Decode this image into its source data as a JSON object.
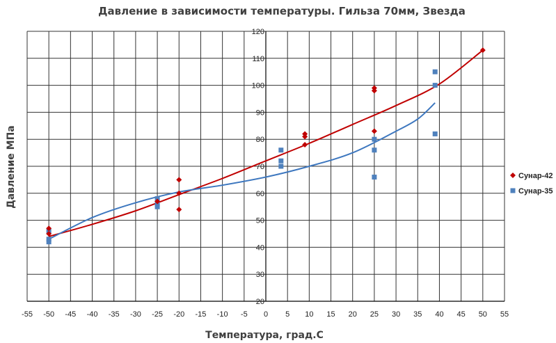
{
  "chart_data": {
    "type": "scatter",
    "title": "Давление в зависимости температуры.  Гильза 70мм, Звезда",
    "xlabel": "Температура, град.С",
    "ylabel": "Давление МПа",
    "xlim": [
      -55,
      55
    ],
    "ylim": [
      20,
      120
    ],
    "x_ticks": [
      -55,
      -50,
      -45,
      -40,
      -35,
      -30,
      -25,
      -20,
      -15,
      -10,
      -5,
      0,
      5,
      10,
      15,
      20,
      25,
      30,
      35,
      40,
      45,
      50,
      55
    ],
    "y_ticks": [
      20,
      30,
      40,
      50,
      60,
      70,
      80,
      90,
      100,
      110,
      120
    ],
    "grid": true,
    "legend_position": "right",
    "series": [
      {
        "name": "Сунар-42",
        "marker": "diamond",
        "color": "#c00000",
        "points": [
          [
            -50,
            47
          ],
          [
            -50,
            45
          ],
          [
            -25,
            57
          ],
          [
            -20,
            65
          ],
          [
            -20,
            60
          ],
          [
            -20,
            54
          ],
          [
            9,
            82
          ],
          [
            9,
            81
          ],
          [
            9,
            78
          ],
          [
            25,
            99
          ],
          [
            25,
            98
          ],
          [
            25,
            83
          ],
          [
            50,
            113
          ]
        ],
        "trendline": {
          "kind": "polynomial",
          "x": [
            -50,
            -40,
            -30,
            -20,
            -10,
            0,
            10,
            20,
            30,
            40,
            50
          ],
          "y": [
            44,
            48.5,
            53.5,
            59.5,
            65.5,
            72,
            78.5,
            85.5,
            92.5,
            100.5,
            113
          ]
        }
      },
      {
        "name": "Сунар-35",
        "marker": "square",
        "color": "#4f81bd",
        "points": [
          [
            -50,
            46
          ],
          [
            -50,
            43
          ],
          [
            -50,
            42
          ],
          [
            -25,
            58
          ],
          [
            -25,
            56
          ],
          [
            -25,
            55
          ],
          [
            3.5,
            76
          ],
          [
            3.5,
            72
          ],
          [
            3.5,
            70
          ],
          [
            25,
            80
          ],
          [
            25,
            76
          ],
          [
            25,
            66
          ],
          [
            39,
            105
          ],
          [
            39,
            100
          ],
          [
            39,
            82
          ]
        ],
        "trendline": {
          "kind": "polynomial",
          "x": [
            -50,
            -40,
            -30,
            -20,
            -10,
            0,
            10,
            20,
            30,
            35,
            39
          ],
          "y": [
            43,
            51,
            56.5,
            60.5,
            63,
            66,
            70,
            75,
            83,
            87.5,
            93.5
          ]
        }
      }
    ]
  }
}
